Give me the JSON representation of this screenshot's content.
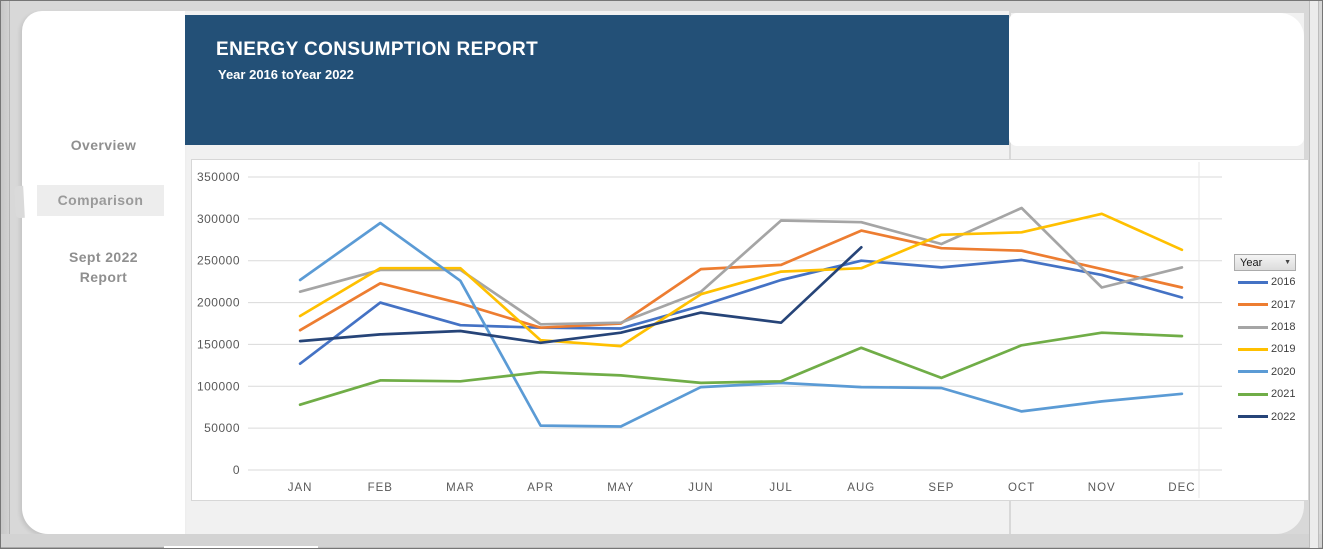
{
  "sidebar": {
    "items": [
      {
        "label": "Overview",
        "active": false
      },
      {
        "label": "Comparison",
        "active": true
      },
      {
        "label": "Sept 2022 Report",
        "active": false
      }
    ]
  },
  "header": {
    "title": "ENERGY CONSUMPTION REPORT",
    "subtitle": "Year 2016 toYear 2022",
    "bg_color": "#235077"
  },
  "legend": {
    "filter_label": "Year",
    "dropdown_icon": "▼"
  },
  "chart_data": {
    "type": "line",
    "title": "",
    "xlabel": "",
    "ylabel": "",
    "x": [
      "JAN",
      "FEB",
      "MAR",
      "APR",
      "MAY",
      "JUN",
      "JUL",
      "AUG",
      "SEP",
      "OCT",
      "NOV",
      "DEC"
    ],
    "ylim": [
      0,
      350000
    ],
    "ytick_step": 50000,
    "grid": true,
    "legend_position": "right",
    "axis_text_color": "#595959",
    "gridline_color": "#dadada",
    "series": [
      {
        "name": "2016",
        "color": "#4472C4",
        "values": [
          127000,
          200000,
          173000,
          170000,
          169000,
          196000,
          227000,
          250000,
          242000,
          251000,
          233000,
          206000
        ]
      },
      {
        "name": "2017",
        "color": "#ED7D31",
        "values": [
          167000,
          223000,
          199000,
          170000,
          175000,
          240000,
          245000,
          286000,
          265000,
          262000,
          240000,
          218000
        ]
      },
      {
        "name": "2018",
        "color": "#A5A5A5",
        "values": [
          213000,
          239000,
          239000,
          174000,
          176000,
          213000,
          298000,
          296000,
          270000,
          313000,
          218000,
          242000
        ]
      },
      {
        "name": "2019",
        "color": "#FFC000",
        "values": [
          184000,
          241000,
          241000,
          155000,
          148000,
          210000,
          237000,
          241000,
          281000,
          284000,
          306000,
          263000
        ]
      },
      {
        "name": "2020",
        "color": "#5B9BD5",
        "values": [
          227000,
          295000,
          226000,
          53000,
          52000,
          99000,
          104000,
          99000,
          98000,
          70000,
          82000,
          91000
        ]
      },
      {
        "name": "2021",
        "color": "#70AD47",
        "values": [
          78000,
          107000,
          106000,
          117000,
          113000,
          104000,
          106000,
          146000,
          110000,
          149000,
          164000,
          160000
        ]
      },
      {
        "name": "2022",
        "color": "#264478",
        "values": [
          154000,
          162000,
          166000,
          152000,
          164000,
          188000,
          176000,
          266000
        ]
      }
    ]
  }
}
